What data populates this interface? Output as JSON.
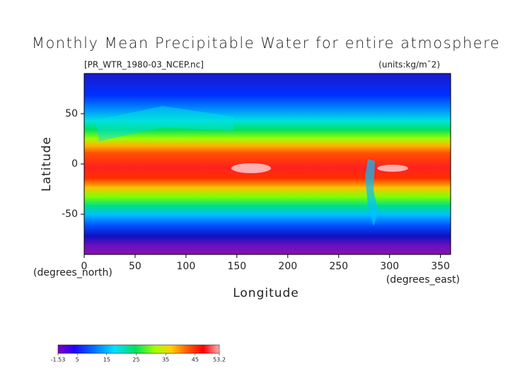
{
  "chart_data": {
    "type": "contour-map",
    "title": "Monthly Mean Precipitable Water for entire atmosphere",
    "subtitle": "[PR_WTR_1980-03_NCEP.nc]",
    "units": "(units:kg/m¯2)",
    "xlabel": "Longitude",
    "ylabel": "Latitude",
    "x_unit": "(degrees_east)",
    "y_unit": "(degrees_north)",
    "xlim": [
      0,
      360
    ],
    "xticks": [
      0,
      50,
      100,
      150,
      200,
      250,
      300,
      350
    ],
    "ylim": [
      -90,
      90
    ],
    "yticks": [
      -50,
      0,
      50
    ],
    "colorbar": {
      "lim": [
        -1.53,
        53.2
      ],
      "ticks": [
        -1.53,
        5,
        15,
        25,
        35,
        45,
        53.2
      ]
    }
  }
}
